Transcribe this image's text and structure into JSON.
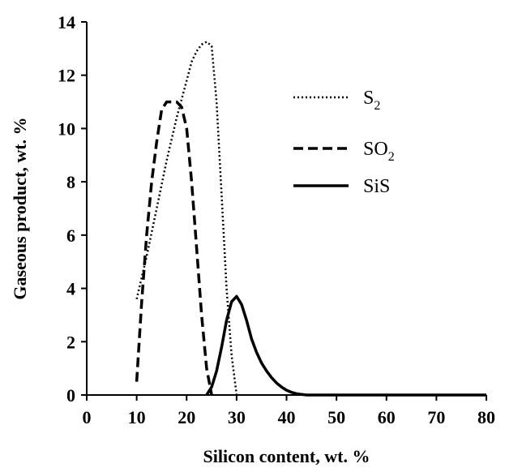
{
  "chart_data": {
    "type": "line",
    "xlabel": "Silicon content, wt. %",
    "ylabel": "Gaseous product, wt. %",
    "xlim": [
      0,
      80
    ],
    "ylim": [
      0,
      14
    ],
    "xticks": [
      0,
      10,
      20,
      30,
      40,
      50,
      60,
      70,
      80
    ],
    "yticks": [
      0,
      2,
      4,
      6,
      8,
      10,
      12,
      14
    ],
    "grid": false,
    "legend_position": "top-right",
    "series": [
      {
        "name": "S2",
        "label_main": "S",
        "label_sub": "2",
        "style": "dotted",
        "color": "#000000",
        "x": [
          10,
          12,
          14,
          16,
          18,
          20,
          21,
          22,
          23,
          24,
          25,
          26,
          27,
          28,
          29,
          30
        ],
        "y": [
          3.6,
          5.2,
          7.0,
          8.8,
          10.4,
          11.8,
          12.5,
          12.9,
          13.15,
          13.25,
          13.1,
          11.0,
          7.5,
          4.0,
          1.5,
          0.0
        ]
      },
      {
        "name": "SO2",
        "label_main": "SO",
        "label_sub": "2",
        "style": "dashed",
        "color": "#000000",
        "x": [
          10,
          11,
          12,
          13,
          14,
          15,
          16,
          17,
          18,
          19,
          20,
          21,
          22,
          23,
          24,
          25
        ],
        "y": [
          0.5,
          3.5,
          6.0,
          8.0,
          9.5,
          10.7,
          11.0,
          11.0,
          11.0,
          10.8,
          10.0,
          8.0,
          5.5,
          3.0,
          1.0,
          0.0
        ]
      },
      {
        "name": "SiS",
        "label_main": "SiS",
        "label_sub": "",
        "style": "solid",
        "color": "#000000",
        "x": [
          24,
          25,
          26,
          27,
          28,
          29,
          30,
          31,
          32,
          33,
          34,
          35,
          36,
          37,
          38,
          39,
          40,
          41,
          42,
          43,
          44,
          45,
          50,
          60,
          70,
          80
        ],
        "y": [
          0.0,
          0.3,
          0.9,
          1.8,
          2.8,
          3.5,
          3.7,
          3.4,
          2.8,
          2.1,
          1.6,
          1.2,
          0.9,
          0.65,
          0.45,
          0.3,
          0.18,
          0.1,
          0.05,
          0.02,
          0.0,
          0.0,
          0.0,
          0.0,
          0.0,
          0.0
        ]
      }
    ]
  }
}
